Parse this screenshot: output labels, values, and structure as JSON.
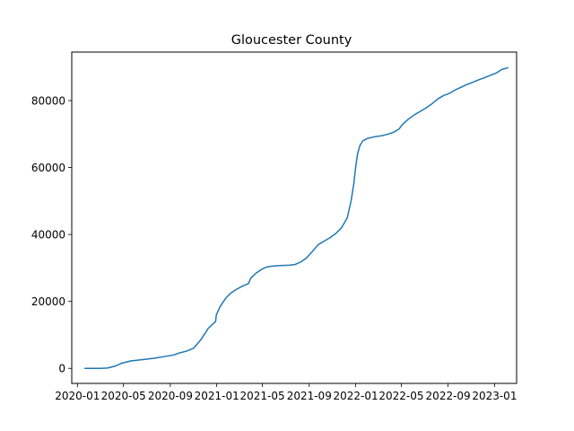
{
  "chart_data": {
    "type": "line",
    "title": "Gloucester County",
    "xlabel": "",
    "ylabel": "",
    "grid": false,
    "x_range": [
      "2019-12-17",
      "2023-02-28"
    ],
    "ylim": [
      -4500,
      94500
    ],
    "x_ticks": [
      {
        "date": "2020-01-01",
        "label": "2020-01"
      },
      {
        "date": "2020-05-01",
        "label": "2020-05"
      },
      {
        "date": "2020-09-01",
        "label": "2020-09"
      },
      {
        "date": "2021-01-01",
        "label": "2021-01"
      },
      {
        "date": "2021-05-01",
        "label": "2021-05"
      },
      {
        "date": "2021-09-01",
        "label": "2021-09"
      },
      {
        "date": "2022-01-01",
        "label": "2022-01"
      },
      {
        "date": "2022-05-01",
        "label": "2022-05"
      },
      {
        "date": "2022-09-01",
        "label": "2022-09"
      },
      {
        "date": "2023-01-01",
        "label": "2023-01"
      }
    ],
    "y_ticks": [
      {
        "value": 0,
        "label": "0"
      },
      {
        "value": 20000,
        "label": "20000"
      },
      {
        "value": 40000,
        "label": "40000"
      },
      {
        "value": 60000,
        "label": "60000"
      },
      {
        "value": 80000,
        "label": "80000"
      }
    ],
    "series": [
      {
        "color": "#1f77b4",
        "points": [
          [
            "2020-01-21",
            0
          ],
          [
            "2020-03-01",
            0
          ],
          [
            "2020-03-20",
            100
          ],
          [
            "2020-04-10",
            700
          ],
          [
            "2020-04-25",
            1500
          ],
          [
            "2020-05-20",
            2200
          ],
          [
            "2020-06-20",
            2600
          ],
          [
            "2020-07-20",
            3000
          ],
          [
            "2020-08-20",
            3600
          ],
          [
            "2020-09-10",
            4000
          ],
          [
            "2020-09-25",
            4600
          ],
          [
            "2020-10-15",
            5200
          ],
          [
            "2020-11-01",
            6000
          ],
          [
            "2020-11-20",
            8500
          ],
          [
            "2020-12-10",
            12000
          ],
          [
            "2020-12-29",
            14000
          ],
          [
            "2020-12-31",
            16000
          ],
          [
            "2021-01-10",
            18500
          ],
          [
            "2021-01-25",
            21000
          ],
          [
            "2021-02-05",
            22300
          ],
          [
            "2021-02-20",
            23500
          ],
          [
            "2021-03-10",
            24600
          ],
          [
            "2021-03-25",
            25300
          ],
          [
            "2021-04-01",
            27000
          ],
          [
            "2021-04-15",
            28500
          ],
          [
            "2021-04-28",
            29500
          ],
          [
            "2021-05-10",
            30200
          ],
          [
            "2021-05-25",
            30500
          ],
          [
            "2021-06-15",
            30700
          ],
          [
            "2021-07-10",
            30800
          ],
          [
            "2021-07-25",
            31000
          ],
          [
            "2021-08-10",
            31800
          ],
          [
            "2021-08-25",
            33000
          ],
          [
            "2021-09-10",
            35000
          ],
          [
            "2021-09-25",
            37000
          ],
          [
            "2021-10-10",
            38000
          ],
          [
            "2021-10-25",
            39000
          ],
          [
            "2021-11-10",
            40300
          ],
          [
            "2021-11-25",
            42000
          ],
          [
            "2021-12-10",
            45000
          ],
          [
            "2021-12-20",
            50000
          ],
          [
            "2021-12-27",
            55000
          ],
          [
            "2022-01-01",
            60000
          ],
          [
            "2022-01-06",
            64000
          ],
          [
            "2022-01-12",
            66500
          ],
          [
            "2022-01-20",
            68000
          ],
          [
            "2022-02-01",
            68700
          ],
          [
            "2022-02-20",
            69200
          ],
          [
            "2022-03-10",
            69500
          ],
          [
            "2022-03-25",
            69900
          ],
          [
            "2022-04-10",
            70500
          ],
          [
            "2022-04-25",
            71500
          ],
          [
            "2022-05-05",
            73000
          ],
          [
            "2022-05-20",
            74500
          ],
          [
            "2022-06-05",
            75800
          ],
          [
            "2022-06-20",
            76800
          ],
          [
            "2022-07-05",
            77800
          ],
          [
            "2022-07-20",
            79000
          ],
          [
            "2022-08-05",
            80500
          ],
          [
            "2022-08-20",
            81500
          ],
          [
            "2022-09-05",
            82200
          ],
          [
            "2022-09-20",
            83200
          ],
          [
            "2022-10-05",
            84000
          ],
          [
            "2022-10-20",
            84800
          ],
          [
            "2022-11-05",
            85500
          ],
          [
            "2022-11-20",
            86200
          ],
          [
            "2022-12-05",
            86800
          ],
          [
            "2022-12-20",
            87500
          ],
          [
            "2023-01-05",
            88200
          ],
          [
            "2023-01-20",
            89300
          ],
          [
            "2023-02-05",
            89800
          ]
        ]
      }
    ]
  }
}
